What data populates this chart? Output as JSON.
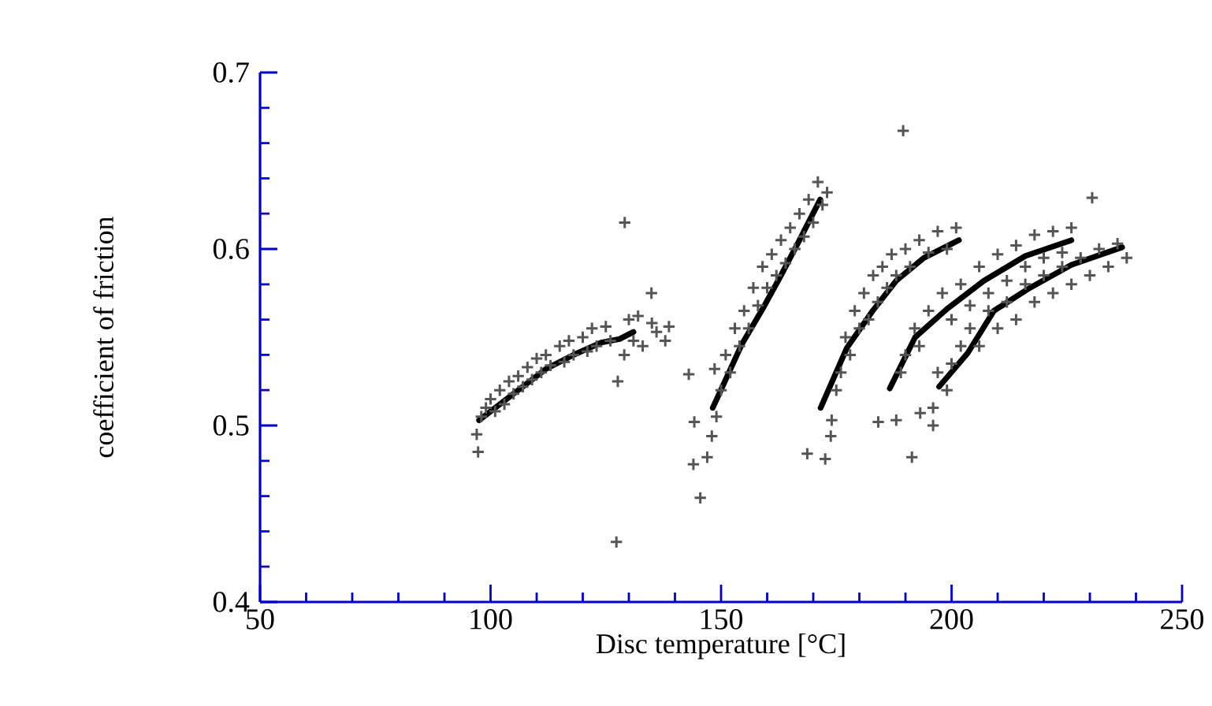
{
  "chart_data": {
    "type": "scatter",
    "xlabel": "Disc temperature [°C]",
    "ylabel": "coefficient of friction",
    "xlim": [
      50,
      250
    ],
    "xticks": [
      50,
      100,
      150,
      200,
      250
    ],
    "ylim": [
      0.4,
      0.7
    ],
    "yticks": [
      0.4,
      0.5,
      0.6,
      0.7
    ],
    "series": [
      {
        "marker": "cross",
        "color": "#555555",
        "x": [
          97,
          97.3,
          98,
          99,
          100,
          101,
          102,
          103,
          104,
          105,
          106,
          107,
          108,
          109,
          110,
          111,
          112,
          113,
          115,
          116,
          117,
          118,
          120,
          121,
          122,
          123,
          125,
          126,
          127.6,
          127.3,
          129.1,
          129,
          130,
          131,
          132,
          133,
          134.9,
          135,
          136,
          137.9,
          138.7,
          143,
          144,
          144.2,
          145.5,
          147,
          148,
          148.6,
          149,
          150,
          151,
          152,
          153,
          154,
          155,
          156,
          157,
          158,
          159,
          160,
          161,
          162,
          163,
          164,
          165,
          166,
          167,
          168,
          169,
          170,
          171,
          172,
          173,
          168.7,
          172.6,
          173.8,
          174,
          175,
          176,
          177,
          178,
          179,
          180,
          181,
          182,
          183,
          184,
          185,
          186,
          187,
          188,
          190,
          189.5,
          191,
          193,
          195,
          197,
          199,
          201,
          184.1,
          188,
          189,
          190,
          191.4,
          192,
          193,
          193.2,
          195,
          196,
          198,
          200,
          202,
          204,
          206,
          208,
          210,
          212,
          214,
          216,
          218,
          220,
          222,
          224,
          226,
          196,
          197,
          199,
          200,
          202,
          204,
          206,
          208,
          210,
          212,
          214,
          216,
          218,
          220,
          222,
          224,
          226,
          228,
          230.5,
          230,
          232,
          234,
          236,
          238
        ],
        "values": [
          0.495,
          0.485,
          0.505,
          0.51,
          0.515,
          0.508,
          0.52,
          0.512,
          0.525,
          0.518,
          0.528,
          0.522,
          0.533,
          0.526,
          0.538,
          0.53,
          0.54,
          0.534,
          0.545,
          0.536,
          0.548,
          0.54,
          0.55,
          0.542,
          0.555,
          0.545,
          0.556,
          0.548,
          0.525,
          0.434,
          0.615,
          0.54,
          0.56,
          0.548,
          0.562,
          0.545,
          0.575,
          0.558,
          0.553,
          0.548,
          0.556,
          0.529,
          0.478,
          0.502,
          0.459,
          0.482,
          0.494,
          0.532,
          0.505,
          0.52,
          0.54,
          0.53,
          0.555,
          0.545,
          0.565,
          0.555,
          0.578,
          0.568,
          0.59,
          0.578,
          0.597,
          0.585,
          0.605,
          0.592,
          0.612,
          0.6,
          0.62,
          0.607,
          0.628,
          0.615,
          0.638,
          0.625,
          0.632,
          0.484,
          0.481,
          0.494,
          0.503,
          0.52,
          0.53,
          0.55,
          0.54,
          0.565,
          0.555,
          0.575,
          0.56,
          0.585,
          0.57,
          0.59,
          0.578,
          0.597,
          0.585,
          0.6,
          0.667,
          0.59,
          0.605,
          0.598,
          0.61,
          0.6,
          0.612,
          0.502,
          0.503,
          0.53,
          0.54,
          0.482,
          0.555,
          0.545,
          0.507,
          0.565,
          0.5,
          0.575,
          0.56,
          0.58,
          0.568,
          0.59,
          0.575,
          0.597,
          0.582,
          0.602,
          0.59,
          0.608,
          0.595,
          0.61,
          0.598,
          0.612,
          0.51,
          0.53,
          0.52,
          0.535,
          0.545,
          0.555,
          0.545,
          0.565,
          0.555,
          0.57,
          0.56,
          0.58,
          0.57,
          0.585,
          0.575,
          0.59,
          0.58,
          0.595,
          0.629,
          0.585,
          0.6,
          0.59,
          0.603,
          0.595
        ]
      },
      {
        "type": "line",
        "marker": "none",
        "color": "#000000",
        "x": [
          97.5,
          104,
          112,
          118,
          124,
          128,
          131
        ],
        "values": [
          0.503,
          0.516,
          0.532,
          0.54,
          0.547,
          0.549,
          0.553
        ]
      },
      {
        "type": "line",
        "marker": "none",
        "color": "#000000",
        "x": [
          148.2,
          154.5,
          159,
          163,
          167,
          171.5
        ],
        "values": [
          0.51,
          0.546,
          0.566,
          0.585,
          0.605,
          0.628
        ]
      },
      {
        "type": "line",
        "marker": "none",
        "color": "#000000",
        "x": [
          171.6,
          177.3,
          182.9,
          188,
          194,
          201.6
        ],
        "values": [
          0.51,
          0.544,
          0.565,
          0.582,
          0.595,
          0.605
        ]
      },
      {
        "type": "line",
        "marker": "none",
        "color": "#000000",
        "x": [
          186.6,
          192.1,
          199,
          207,
          216,
          226
        ],
        "values": [
          0.521,
          0.55,
          0.566,
          0.582,
          0.596,
          0.605
        ]
      },
      {
        "type": "line",
        "marker": "none",
        "color": "#000000",
        "x": [
          197.3,
          203.5,
          209.2,
          217,
          226,
          237
        ],
        "values": [
          0.522,
          0.541,
          0.565,
          0.578,
          0.591,
          0.601
        ]
      }
    ]
  }
}
